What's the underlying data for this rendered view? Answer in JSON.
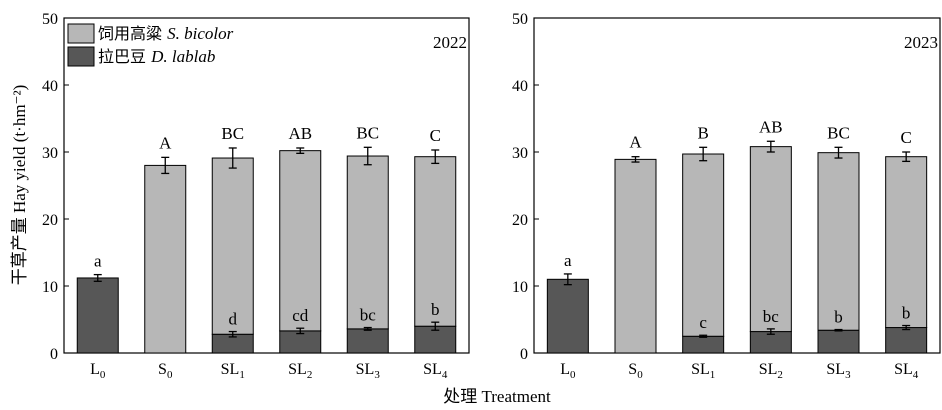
{
  "y_label": "干草产量 Hay yield (t·hm⁻²)",
  "x_label": "处理 Treatment",
  "colors": {
    "sorghum": "#b7b7b7",
    "lablab": "#575757"
  },
  "legend": [
    {
      "zh": "饲用高粱",
      "latin": "S. bicolor",
      "key": "sorghum"
    },
    {
      "zh": "拉巴豆",
      "latin": "D. lablab",
      "key": "lablab"
    }
  ],
  "chart_data": [
    {
      "type": "bar",
      "stacked": true,
      "title": "2022",
      "categories": [
        {
          "main": "L",
          "sub": "0"
        },
        {
          "main": "S",
          "sub": "0"
        },
        {
          "main": "SL",
          "sub": "1"
        },
        {
          "main": "SL",
          "sub": "2"
        },
        {
          "main": "SL",
          "sub": "3"
        },
        {
          "main": "SL",
          "sub": "4"
        }
      ],
      "ylim": [
        0,
        50
      ],
      "yticks": [
        0,
        10,
        20,
        30,
        40,
        50
      ],
      "series": [
        {
          "name": "拉巴豆 D. lablab",
          "color_key": "lablab",
          "values": [
            11.2,
            0,
            2.8,
            3.3,
            3.6,
            4.0
          ],
          "errors": [
            0.5,
            0,
            0.4,
            0.4,
            0.2,
            0.6
          ],
          "labels": [
            "a",
            "",
            "d",
            "cd",
            "bc",
            "b"
          ]
        },
        {
          "name": "饲用高粱 S. bicolor",
          "color_key": "sorghum",
          "values": [
            0,
            28.0,
            26.3,
            26.9,
            25.8,
            25.3
          ],
          "errors": [
            0,
            1.2,
            1.5,
            0.4,
            1.3,
            1.0
          ],
          "labels": [
            "",
            "A",
            "BC",
            "AB",
            "BC",
            "C"
          ]
        }
      ],
      "totals": [
        11.2,
        28.0,
        29.1,
        30.2,
        29.4,
        29.3
      ]
    },
    {
      "type": "bar",
      "stacked": true,
      "title": "2023",
      "categories": [
        {
          "main": "L",
          "sub": "0"
        },
        {
          "main": "S",
          "sub": "0"
        },
        {
          "main": "SL",
          "sub": "1"
        },
        {
          "main": "SL",
          "sub": "2"
        },
        {
          "main": "SL",
          "sub": "3"
        },
        {
          "main": "SL",
          "sub": "4"
        }
      ],
      "ylim": [
        0,
        50
      ],
      "yticks": [
        0,
        10,
        20,
        30,
        40,
        50
      ],
      "series": [
        {
          "name": "拉巴豆 D. lablab",
          "color_key": "lablab",
          "values": [
            11.0,
            0,
            2.5,
            3.2,
            3.4,
            3.8
          ],
          "errors": [
            0.8,
            0,
            0.15,
            0.4,
            0.1,
            0.3
          ],
          "labels": [
            "a",
            "",
            "c",
            "bc",
            "b",
            "b"
          ]
        },
        {
          "name": "饲用高粱 S. bicolor",
          "color_key": "sorghum",
          "values": [
            0,
            28.9,
            27.2,
            27.6,
            26.5,
            25.5
          ],
          "errors": [
            0,
            0.4,
            1.0,
            0.8,
            0.8,
            0.7
          ],
          "labels": [
            "",
            "A",
            "B",
            "AB",
            "BC",
            "C"
          ]
        }
      ],
      "totals": [
        11.0,
        28.9,
        29.7,
        30.8,
        29.9,
        29.3
      ]
    }
  ]
}
